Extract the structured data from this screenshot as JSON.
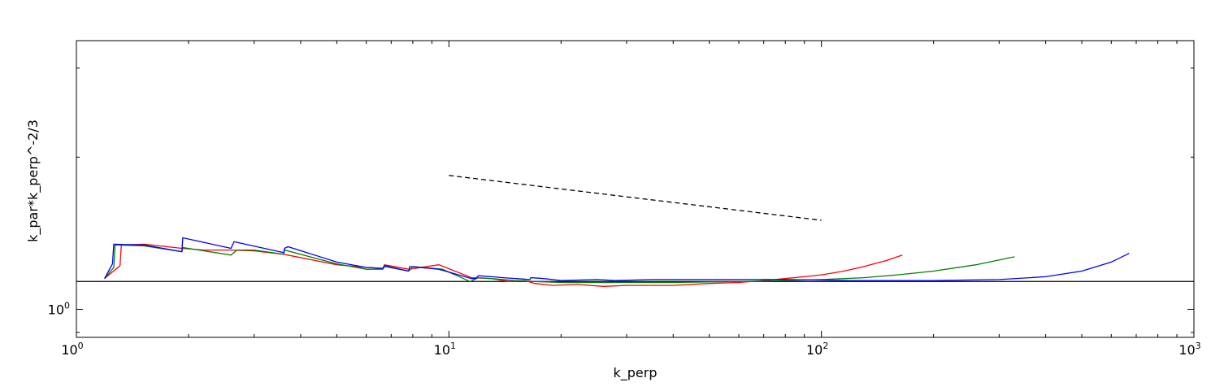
{
  "chart_data": {
    "type": "line",
    "title": "",
    "xlabel": "k_perp",
    "ylabel": "k_par*k_perp^-2/3",
    "x_scale": "log",
    "y_scale": "log",
    "xlim": [
      1,
      1000
    ],
    "ylim": [
      0.88,
      3.4
    ],
    "grid": false,
    "legend": "none",
    "x_ticks": [
      {
        "value": 1,
        "base": "10",
        "exp": "0"
      },
      {
        "value": 10,
        "base": "10",
        "exp": "1"
      },
      {
        "value": 100,
        "base": "10",
        "exp": "2"
      },
      {
        "value": 1000,
        "base": "10",
        "exp": "3"
      }
    ],
    "y_ticks": [
      {
        "value": 1,
        "base": "10",
        "exp": "0"
      }
    ],
    "reference_lines": [
      {
        "kind": "horizontal",
        "y": 1.135,
        "color": "#000000",
        "style": "solid"
      },
      {
        "kind": "power-law",
        "x": [
          10,
          100
        ],
        "y": [
          1.84,
          1.5
        ],
        "color": "#000000",
        "style": "dashed"
      }
    ],
    "series": [
      {
        "color": "#ff0000",
        "x": [
          1.19,
          1.31,
          1.32,
          1.52,
          1.92,
          2.2,
          2.6,
          3.0,
          3.6,
          5.0,
          6.0,
          6.65,
          6.72,
          7.8,
          9.4,
          11.5,
          13.0,
          14.5,
          16.0,
          17.0,
          19.0,
          22.0,
          26.0,
          30.0,
          35.0,
          40.0,
          50.0,
          60.0,
          70.0,
          80.0,
          90.0,
          100.0,
          115.0,
          130.0,
          150.0,
          165.0
        ],
        "y": [
          1.15,
          1.22,
          1.34,
          1.345,
          1.32,
          1.31,
          1.31,
          1.305,
          1.285,
          1.225,
          1.21,
          1.205,
          1.225,
          1.2,
          1.225,
          1.155,
          1.15,
          1.135,
          1.14,
          1.125,
          1.115,
          1.12,
          1.11,
          1.115,
          1.115,
          1.115,
          1.125,
          1.13,
          1.14,
          1.15,
          1.16,
          1.17,
          1.19,
          1.215,
          1.25,
          1.28
        ]
      },
      {
        "color": "#008000",
        "x": [
          1.19,
          1.26,
          1.27,
          1.52,
          1.92,
          1.93,
          2.6,
          2.7,
          3.0,
          3.6,
          3.62,
          5.0,
          6.0,
          6.65,
          6.72,
          7.8,
          8.0,
          9.6,
          11.4,
          12.0,
          13.0,
          15.0,
          17.0,
          20.0,
          25.0,
          30.0,
          40.0,
          60.0,
          80.0,
          100.0,
          130.0,
          160.0,
          200.0,
          260.0,
          330.0
        ],
        "y": [
          1.15,
          1.21,
          1.34,
          1.335,
          1.3,
          1.325,
          1.28,
          1.31,
          1.31,
          1.285,
          1.31,
          1.23,
          1.2,
          1.2,
          1.215,
          1.19,
          1.215,
          1.2,
          1.135,
          1.155,
          1.15,
          1.14,
          1.135,
          1.13,
          1.13,
          1.13,
          1.13,
          1.135,
          1.14,
          1.145,
          1.155,
          1.17,
          1.19,
          1.225,
          1.27
        ]
      },
      {
        "color": "#0000ff",
        "x": [
          1.19,
          1.25,
          1.26,
          1.52,
          1.92,
          1.93,
          2.6,
          2.65,
          3.6,
          3.62,
          3.7,
          5.0,
          6.0,
          6.65,
          6.72,
          7.8,
          7.85,
          9.4,
          11.5,
          11.8,
          12.0,
          13.0,
          14.0,
          16.5,
          16.6,
          18.0,
          20.0,
          25.0,
          28.0,
          35.0,
          50.0,
          80.0,
          120.0,
          200.0,
          300.0,
          400.0,
          500.0,
          600.0,
          670.0
        ],
        "y": [
          1.15,
          1.23,
          1.345,
          1.34,
          1.3,
          1.385,
          1.32,
          1.36,
          1.295,
          1.32,
          1.33,
          1.24,
          1.21,
          1.205,
          1.22,
          1.19,
          1.215,
          1.2,
          1.15,
          1.15,
          1.165,
          1.16,
          1.155,
          1.145,
          1.155,
          1.15,
          1.14,
          1.145,
          1.14,
          1.145,
          1.145,
          1.145,
          1.14,
          1.14,
          1.145,
          1.16,
          1.19,
          1.24,
          1.29
        ]
      }
    ]
  }
}
